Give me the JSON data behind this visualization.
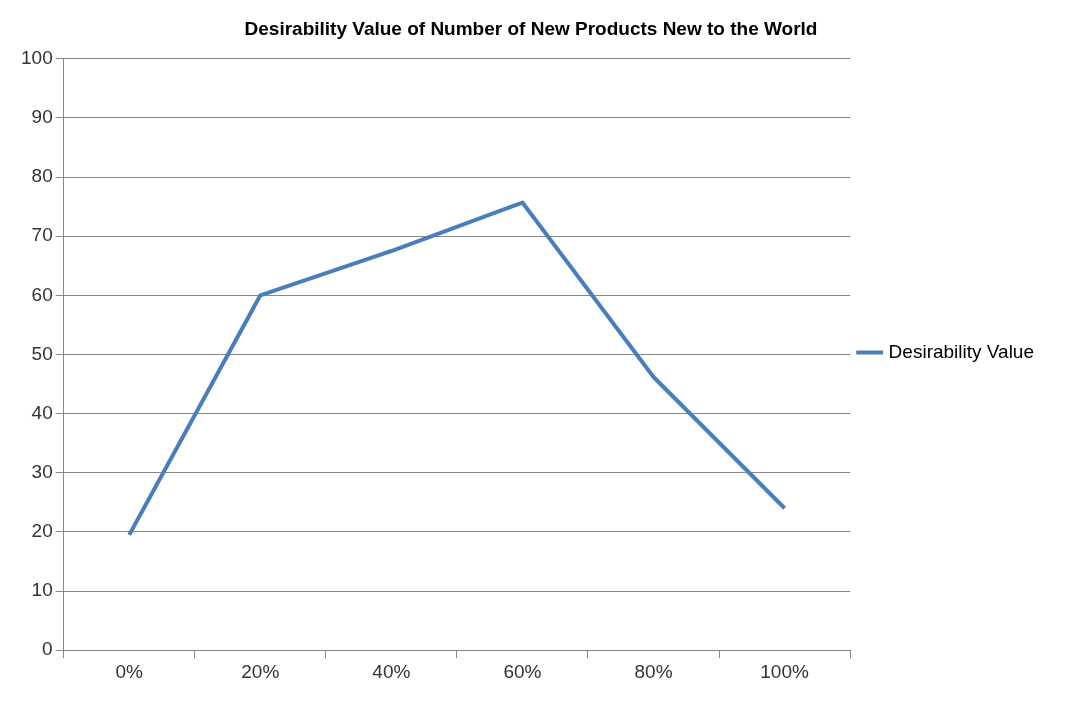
{
  "chart_data": {
    "type": "line",
    "title": "Desirability Value of Number of New Products New to the World",
    "categories": [
      "0%",
      "20%",
      "40%",
      "60%",
      "80%",
      "100%"
    ],
    "series": [
      {
        "name": "Desirability Value",
        "color": "#4a7ebb",
        "values": [
          19.5,
          60,
          67.5,
          75.7,
          46.2,
          24
        ]
      }
    ],
    "ylim": [
      0,
      100
    ],
    "yticks": [
      0,
      10,
      20,
      30,
      40,
      50,
      60,
      70,
      80,
      90,
      100
    ],
    "grid": "y",
    "legend": "right",
    "marker": "none",
    "line_style": "solid"
  }
}
